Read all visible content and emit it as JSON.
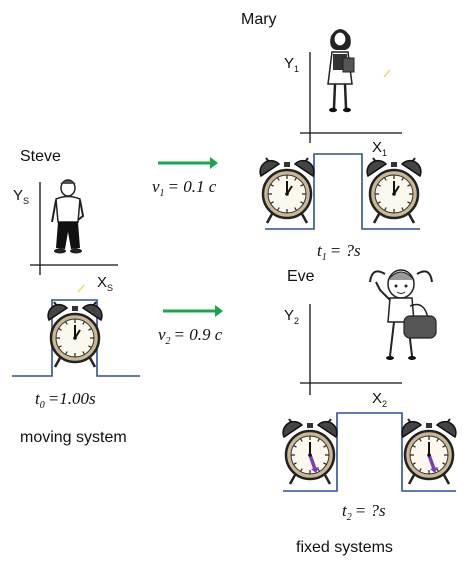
{
  "people": {
    "steve": "Steve",
    "mary": "Mary",
    "eve": "Eve"
  },
  "axes": {
    "steve": {
      "y": "Y",
      "y_sub": "S",
      "x": "X",
      "x_sub": "S"
    },
    "mary": {
      "y": "Y",
      "y_sub": "1",
      "x": "X",
      "x_sub": "1"
    },
    "eve": {
      "y": "Y",
      "y_sub": "2",
      "x": "X",
      "x_sub": "2"
    }
  },
  "velocities": {
    "v1": {
      "symbol": "v",
      "sub": "1",
      "rest": "= 0.1 c"
    },
    "v2": {
      "symbol": "v",
      "sub": "2",
      "rest": "= 0.9 c"
    }
  },
  "times": {
    "t0": {
      "symbol": "t",
      "sub": "0",
      "rest": "=1.00s"
    },
    "t1": {
      "symbol": "t",
      "sub": "1",
      "rest": "= ?s"
    },
    "t2": {
      "symbol": "t",
      "sub": "2",
      "rest": "= ?s"
    }
  },
  "captions": {
    "moving": "moving system",
    "fixed": "fixed systems"
  },
  "colors": {
    "arrow": "#1aa64a",
    "pulse": "#2f4f9a",
    "clock_hand_fixed": "#7b3fb5"
  }
}
